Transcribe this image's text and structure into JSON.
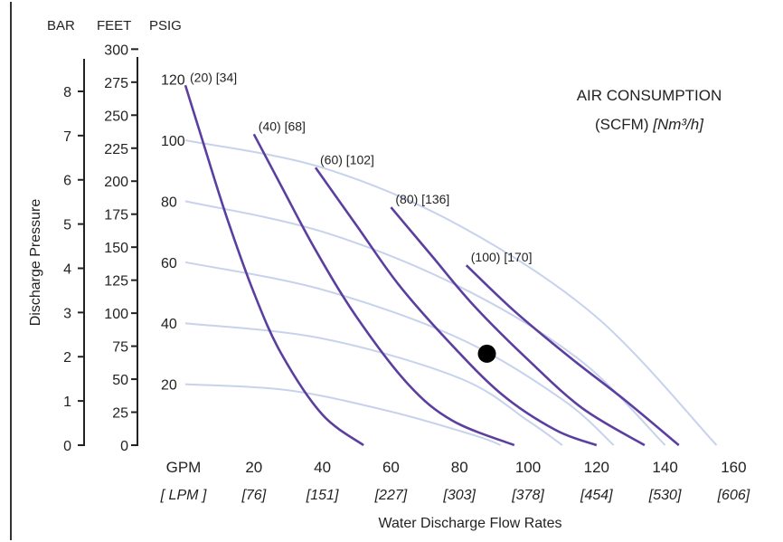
{
  "headers": {
    "bar": "BAR",
    "feet": "FEET",
    "psig": "PSIG"
  },
  "title": {
    "line1": "AIR CONSUMPTION",
    "line2a": "(SCFM)",
    "line2b": "[Nm³/h]"
  },
  "y_axis_title": "Discharge Pressure",
  "x_axis_title": "Water Discharge Flow Rates",
  "x_unit_labels": {
    "gpm": "GPM",
    "lpm": "[ LPM ]"
  },
  "bar_ticks": [
    "0",
    "1",
    "2",
    "3",
    "4",
    "5",
    "6",
    "7",
    "8"
  ],
  "feet_ticks": [
    "0",
    "25",
    "50",
    "75",
    "100",
    "125",
    "150",
    "175",
    "200",
    "225",
    "250",
    "275",
    "300"
  ],
  "psig_ticks": [
    "20",
    "40",
    "60",
    "80",
    "100",
    "120"
  ],
  "x_ticks": [
    {
      "gpm": "20",
      "lpm": "[76]"
    },
    {
      "gpm": "40",
      "lpm": "[151]"
    },
    {
      "gpm": "60",
      "lpm": "[227]"
    },
    {
      "gpm": "80",
      "lpm": "[303]"
    },
    {
      "gpm": "100",
      "lpm": "[378]"
    },
    {
      "gpm": "120",
      "lpm": "[454]"
    },
    {
      "gpm": "140",
      "lpm": "[530]"
    },
    {
      "gpm": "160",
      "lpm": "[606]"
    }
  ],
  "chart_data": {
    "type": "line",
    "title": "AIR CONSUMPTION (SCFM) [Nm³/h]",
    "xlabel": "Water Discharge Flow Rates",
    "ylabel": "Discharge Pressure",
    "x_unit": "GPM",
    "y_unit": "PSIG",
    "xlim": [
      0,
      160
    ],
    "ylim": [
      0,
      120
    ],
    "grid": false,
    "series": [
      {
        "name": "(20) [34]",
        "kind": "air",
        "points": [
          [
            0,
            118
          ],
          [
            5,
            100
          ],
          [
            12,
            75
          ],
          [
            20,
            50
          ],
          [
            28,
            30
          ],
          [
            40,
            10
          ],
          [
            52,
            0
          ]
        ]
      },
      {
        "name": "(40) [68]",
        "kind": "air",
        "points": [
          [
            20,
            102
          ],
          [
            28,
            85
          ],
          [
            38,
            64
          ],
          [
            50,
            42
          ],
          [
            65,
            20
          ],
          [
            78,
            8
          ],
          [
            96,
            0
          ]
        ]
      },
      {
        "name": "(60) [102]",
        "kind": "air",
        "points": [
          [
            38,
            91
          ],
          [
            50,
            72
          ],
          [
            62,
            53
          ],
          [
            76,
            35
          ],
          [
            92,
            17
          ],
          [
            108,
            5
          ],
          [
            120,
            0
          ]
        ]
      },
      {
        "name": "(80) [136]",
        "kind": "air",
        "points": [
          [
            60,
            78
          ],
          [
            72,
            62
          ],
          [
            84,
            46
          ],
          [
            100,
            28
          ],
          [
            116,
            12
          ],
          [
            134,
            0
          ]
        ]
      },
      {
        "name": "(100) [170]",
        "kind": "air",
        "points": [
          [
            82,
            59
          ],
          [
            96,
            44
          ],
          [
            112,
            29
          ],
          [
            128,
            15
          ],
          [
            144,
            0
          ]
        ]
      },
      {
        "name": "",
        "kind": "head",
        "points": [
          [
            0,
            100
          ],
          [
            40,
            91
          ],
          [
            80,
            72
          ],
          [
            120,
            42
          ],
          [
            155,
            0
          ]
        ]
      },
      {
        "name": "",
        "kind": "head",
        "points": [
          [
            0,
            80
          ],
          [
            40,
            70
          ],
          [
            80,
            52
          ],
          [
            115,
            28
          ],
          [
            140,
            0
          ]
        ]
      },
      {
        "name": "",
        "kind": "head",
        "points": [
          [
            0,
            60
          ],
          [
            40,
            51
          ],
          [
            80,
            35
          ],
          [
            110,
            15
          ],
          [
            125,
            0
          ]
        ]
      },
      {
        "name": "",
        "kind": "head",
        "points": [
          [
            0,
            40
          ],
          [
            40,
            35
          ],
          [
            80,
            22
          ],
          [
            100,
            8
          ],
          [
            110,
            0
          ]
        ]
      },
      {
        "name": "",
        "kind": "head",
        "points": [
          [
            0,
            20
          ],
          [
            30,
            18
          ],
          [
            60,
            11
          ],
          [
            85,
            3
          ],
          [
            92,
            0
          ]
        ]
      }
    ],
    "operating_point": {
      "x": 88,
      "y": 30
    }
  }
}
